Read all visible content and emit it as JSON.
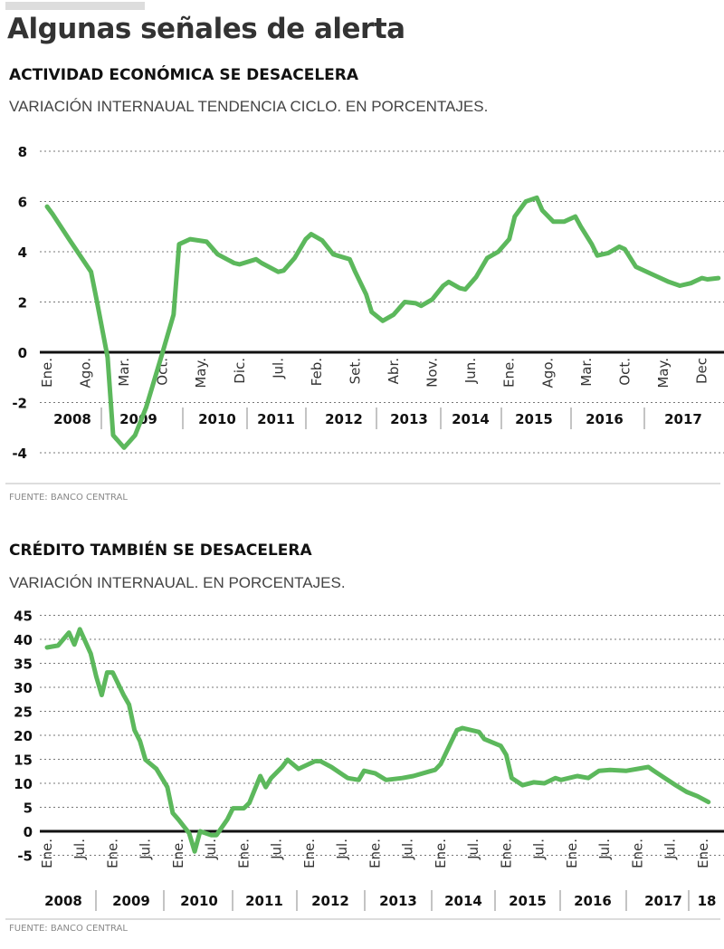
{
  "title": "Algunas señales de alerta",
  "source": "FUENTE: BANCO CENTRAL",
  "chart_data": [
    {
      "type": "line",
      "title": "ACTIVIDAD ECONÓMICA SE DESACELERA",
      "subtitle": "VARIACIÓN INTERNAUAL TENDENCIA CICLO. EN PORCENTAJES.",
      "ylim": [
        -4,
        8
      ],
      "yticks": [
        8,
        6,
        4,
        2,
        0,
        -2,
        -4
      ],
      "grid": true,
      "color": "#5cb85c",
      "month_labels": [
        [
          "2008-01",
          "Ene."
        ],
        [
          "2008-08",
          "Ago."
        ],
        [
          "2009-03",
          "Mar."
        ],
        [
          "2009-10",
          "Oct."
        ],
        [
          "2010-05",
          "May."
        ],
        [
          "2010-12",
          "Dic."
        ],
        [
          "2011-07",
          "Jul."
        ],
        [
          "2012-02",
          "Feb."
        ],
        [
          "2012-09",
          "Set."
        ],
        [
          "2013-04",
          "Abr."
        ],
        [
          "2013-11",
          "Nov."
        ],
        [
          "2014-06",
          "Jun."
        ],
        [
          "2015-01",
          "Ene."
        ],
        [
          "2015-08",
          "Ago."
        ],
        [
          "2016-03",
          "Mar."
        ],
        [
          "2016-10",
          "Oct."
        ],
        [
          "2017-05",
          "May."
        ],
        [
          "2017-12",
          "Dec"
        ]
      ],
      "years": [
        "2008",
        "2009",
        "2010",
        "2011",
        "2012",
        "2013",
        "2014",
        "2015",
        "2016",
        "2017"
      ],
      "points": [
        [
          "2008-01",
          5.8
        ],
        [
          "2008-02",
          5.5
        ],
        [
          "2008-05",
          4.5
        ],
        [
          "2008-09",
          3.2
        ],
        [
          "2008-10",
          2.1
        ],
        [
          "2008-12",
          -0.2
        ],
        [
          "2009-01",
          -3.3
        ],
        [
          "2009-03",
          -3.8
        ],
        [
          "2009-05",
          -3.3
        ],
        [
          "2009-07",
          -2.2
        ],
        [
          "2009-10",
          0
        ],
        [
          "2009-12",
          1.5
        ],
        [
          "2010-01",
          4.3
        ],
        [
          "2010-03",
          4.5
        ],
        [
          "2010-06",
          4.4
        ],
        [
          "2010-08",
          3.9
        ],
        [
          "2010-11",
          3.55
        ],
        [
          "2010-12",
          3.5
        ],
        [
          "2011-03",
          3.7
        ],
        [
          "2011-04",
          3.55
        ],
        [
          "2011-07",
          3.2
        ],
        [
          "2011-08",
          3.25
        ],
        [
          "2011-10",
          3.75
        ],
        [
          "2011-12",
          4.5
        ],
        [
          "2012-01",
          4.7
        ],
        [
          "2012-03",
          4.45
        ],
        [
          "2012-05",
          3.9
        ],
        [
          "2012-08",
          3.7
        ],
        [
          "2012-09",
          3.2
        ],
        [
          "2012-11",
          2.3
        ],
        [
          "2012-12",
          1.6
        ],
        [
          "2013-02",
          1.25
        ],
        [
          "2013-04",
          1.5
        ],
        [
          "2013-06",
          2.0
        ],
        [
          "2013-08",
          1.95
        ],
        [
          "2013-09",
          1.85
        ],
        [
          "2013-11",
          2.1
        ],
        [
          "2014-01",
          2.65
        ],
        [
          "2014-02",
          2.8
        ],
        [
          "2014-04",
          2.55
        ],
        [
          "2014-05",
          2.5
        ],
        [
          "2014-07",
          3.0
        ],
        [
          "2014-09",
          3.75
        ],
        [
          "2014-11",
          4.0
        ],
        [
          "2015-01",
          4.5
        ],
        [
          "2015-02",
          5.4
        ],
        [
          "2015-04",
          6.0
        ],
        [
          "2015-06",
          6.15
        ],
        [
          "2015-07",
          5.65
        ],
        [
          "2015-09",
          5.2
        ],
        [
          "2015-11",
          5.2
        ],
        [
          "2016-01",
          5.4
        ],
        [
          "2016-02",
          5.0
        ],
        [
          "2016-04",
          4.3
        ],
        [
          "2016-05",
          3.85
        ],
        [
          "2016-07",
          3.95
        ],
        [
          "2016-09",
          4.2
        ],
        [
          "2016-10",
          4.1
        ],
        [
          "2016-12",
          3.4
        ],
        [
          "2017-03",
          3.1
        ],
        [
          "2017-06",
          2.8
        ],
        [
          "2017-08",
          2.65
        ],
        [
          "2017-10",
          2.75
        ],
        [
          "2017-12",
          2.95
        ],
        [
          "2018-01",
          2.9
        ],
        [
          "2018-03",
          2.95
        ]
      ]
    },
    {
      "type": "line",
      "title": "CRÉDITO TAMBIÉN SE DESACELERA",
      "subtitle": "VARIACIÓN INTERNAUAL. EN PORCENTAJES.",
      "ylim": [
        -5,
        45
      ],
      "yticks": [
        45,
        40,
        35,
        30,
        25,
        20,
        15,
        10,
        5,
        0,
        -5
      ],
      "grid": true,
      "color": "#5cb85c",
      "month_labels": [
        [
          "2008-01",
          "Ene."
        ],
        [
          "2008-07",
          "Jul."
        ],
        [
          "2009-01",
          "Ene."
        ],
        [
          "2009-07",
          "Jul."
        ],
        [
          "2010-01",
          "Ene."
        ],
        [
          "2010-07",
          "Jul."
        ],
        [
          "2011-01",
          "Ene."
        ],
        [
          "2011-07",
          "Jul."
        ],
        [
          "2012-01",
          "Ene."
        ],
        [
          "2012-07",
          "Jul."
        ],
        [
          "2013-01",
          "Ene."
        ],
        [
          "2013-07",
          "Jul."
        ],
        [
          "2014-01",
          "Ene."
        ],
        [
          "2014-07",
          "Jul."
        ],
        [
          "2015-01",
          "Ene."
        ],
        [
          "2015-07",
          "Jul."
        ],
        [
          "2016-01",
          "Ene."
        ],
        [
          "2016-07",
          "Jul."
        ],
        [
          "2017-01",
          "Ene."
        ],
        [
          "2017-07",
          "Jul."
        ],
        [
          "2018-01",
          "Ene."
        ]
      ],
      "years": [
        "2008",
        "2009",
        "2010",
        "2011",
        "2012",
        "2013",
        "2014",
        "2015",
        "2016",
        "2017",
        "18"
      ],
      "points": [
        [
          "2008-01",
          38.3
        ],
        [
          "2008-03",
          38.7
        ],
        [
          "2008-05",
          41.4
        ],
        [
          "2008-06",
          38.9
        ],
        [
          "2008-07",
          42.1
        ],
        [
          "2008-09",
          37
        ],
        [
          "2008-10",
          32.2
        ],
        [
          "2008-11",
          28.4
        ],
        [
          "2008-12",
          33.1
        ],
        [
          "2009-01",
          33.1
        ],
        [
          "2009-03",
          28.4
        ],
        [
          "2009-04",
          26.4
        ],
        [
          "2009-05",
          21.1
        ],
        [
          "2009-06",
          18.8
        ],
        [
          "2009-07",
          14.9
        ],
        [
          "2009-09",
          13
        ],
        [
          "2009-11",
          9.2
        ],
        [
          "2009-12",
          3.8
        ],
        [
          "2010-01",
          2.5
        ],
        [
          "2010-03",
          -0.4
        ],
        [
          "2010-04",
          -4.2
        ],
        [
          "2010-05",
          0
        ],
        [
          "2010-07",
          -0.8
        ],
        [
          "2010-08",
          -0.8
        ],
        [
          "2010-10",
          2.5
        ],
        [
          "2010-11",
          4.8
        ],
        [
          "2011-01",
          4.8
        ],
        [
          "2011-02",
          5.9
        ],
        [
          "2011-04",
          11.5
        ],
        [
          "2011-05",
          9.2
        ],
        [
          "2011-06",
          11.1
        ],
        [
          "2011-08",
          13.4
        ],
        [
          "2011-09",
          14.9
        ],
        [
          "2011-11",
          13
        ],
        [
          "2012-02",
          14.6
        ],
        [
          "2012-03",
          14.6
        ],
        [
          "2012-05",
          13.4
        ],
        [
          "2012-08",
          11.1
        ],
        [
          "2012-10",
          10.7
        ],
        [
          "2012-11",
          12.6
        ],
        [
          "2013-01",
          12.1
        ],
        [
          "2013-03",
          10.7
        ],
        [
          "2013-06",
          11.1
        ],
        [
          "2013-08",
          11.5
        ],
        [
          "2013-11",
          12.5
        ],
        [
          "2013-12",
          12.8
        ],
        [
          "2014-01",
          14
        ],
        [
          "2014-03",
          18.8
        ],
        [
          "2014-04",
          21.1
        ],
        [
          "2014-05",
          21.5
        ],
        [
          "2014-08",
          20.7
        ],
        [
          "2014-09",
          19.2
        ],
        [
          "2014-12",
          17.8
        ],
        [
          "2015-01",
          15.9
        ],
        [
          "2015-02",
          11.1
        ],
        [
          "2015-04",
          9.6
        ],
        [
          "2015-06",
          10.2
        ],
        [
          "2015-08",
          10
        ],
        [
          "2015-10",
          11.1
        ],
        [
          "2015-11",
          10.7
        ],
        [
          "2016-02",
          11.5
        ],
        [
          "2016-04",
          11.1
        ],
        [
          "2016-06",
          12.6
        ],
        [
          "2016-08",
          12.8
        ],
        [
          "2016-11",
          12.6
        ],
        [
          "2017-01",
          13
        ],
        [
          "2017-03",
          13.4
        ],
        [
          "2017-04",
          12.6
        ],
        [
          "2017-06",
          11.1
        ],
        [
          "2017-08",
          9.6
        ],
        [
          "2017-10",
          8.2
        ],
        [
          "2017-12",
          7.3
        ],
        [
          "2018-02",
          6.1
        ]
      ]
    }
  ]
}
